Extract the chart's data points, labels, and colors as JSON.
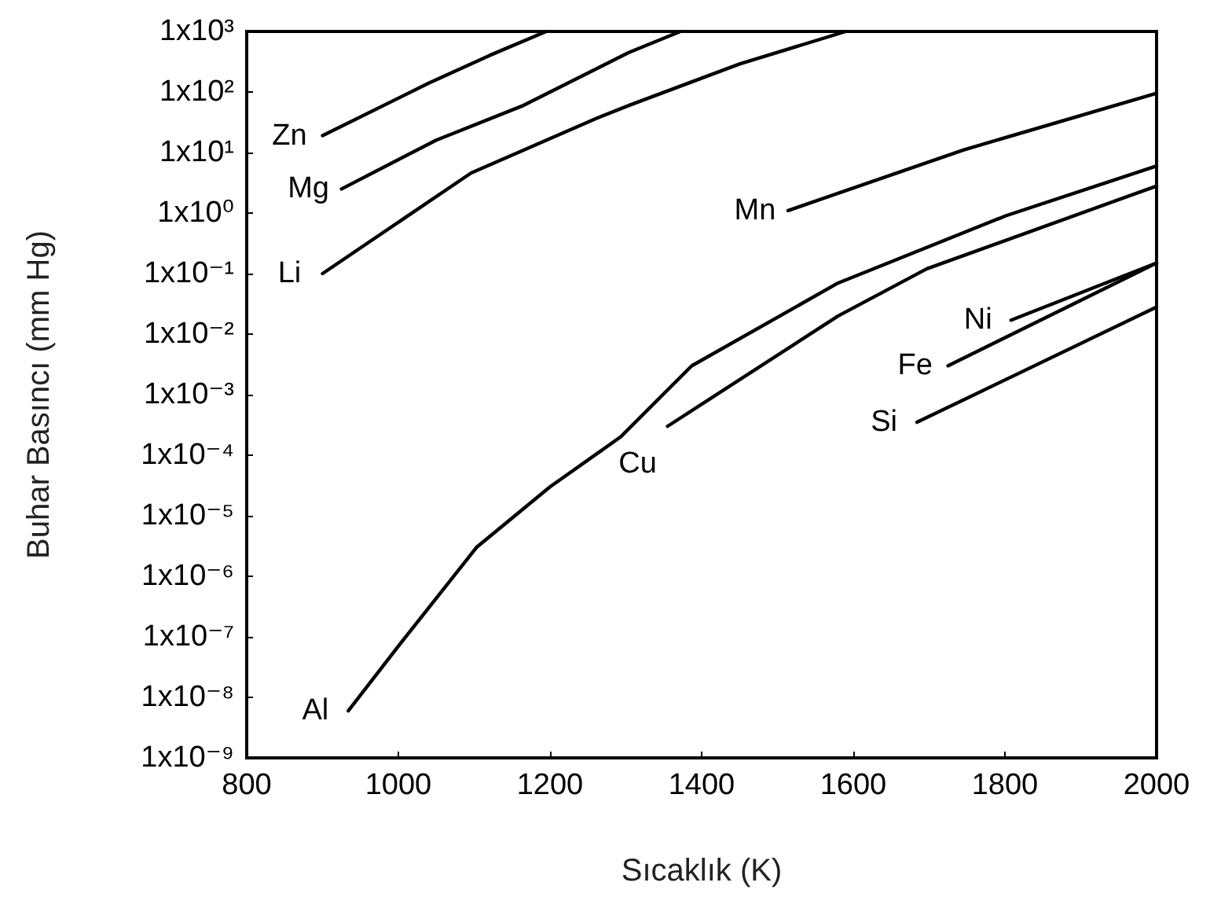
{
  "chart_data": {
    "type": "line",
    "xlabel": "Sıcaklık (K)",
    "ylabel": "Buhar Basıncı (mm Hg)",
    "xlim": [
      800,
      2000
    ],
    "xticks": [
      800,
      1000,
      1200,
      1400,
      1600,
      1800,
      2000
    ],
    "ylim": [
      1e-09,
      1000
    ],
    "log": "y",
    "yticks": [
      {
        "value": 1000,
        "label": "1x10³"
      },
      {
        "value": 100,
        "label": "1x10²"
      },
      {
        "value": 10,
        "label": "1x10¹"
      },
      {
        "value": 1,
        "label": "1x10⁰"
      },
      {
        "value": 0.1,
        "label": "1x10⁻¹"
      },
      {
        "value": 0.01,
        "label": "1x10⁻²"
      },
      {
        "value": 0.001,
        "label": "1x10⁻³"
      },
      {
        "value": 0.0001,
        "label": "1x10⁻⁴"
      },
      {
        "value": 1e-05,
        "label": "1x10⁻⁵"
      },
      {
        "value": 1e-06,
        "label": "1x10⁻⁶"
      },
      {
        "value": 1e-07,
        "label": "1x10⁻⁷"
      },
      {
        "value": 1e-08,
        "label": "1x10⁻⁸"
      },
      {
        "value": 1e-09,
        "label": "1x10⁻⁹"
      }
    ],
    "grid": false,
    "legend": false,
    "marker": "none",
    "line_style": "solid",
    "series": [
      {
        "name": "Zn",
        "color": "#000000",
        "x": [
          900,
          1040,
          1120,
          1195
        ],
        "values": [
          19,
          140,
          400,
          1000
        ]
      },
      {
        "name": "Mg",
        "color": "#000000",
        "x": [
          925,
          1050,
          1165,
          1304,
          1372
        ],
        "values": [
          2.5,
          16,
          60,
          450,
          1000
        ]
      },
      {
        "name": "Li",
        "color": "#000000",
        "x": [
          900,
          1096,
          1262,
          1304,
          1450,
          1590
        ],
        "values": [
          0.1,
          4.6,
          37,
          60,
          290,
          1000
        ]
      },
      {
        "name": "Mn",
        "color": "#000000",
        "x": [
          1514,
          1745,
          2000
        ],
        "values": [
          1.1,
          11,
          95
        ]
      },
      {
        "name": "Al",
        "color": "#000000",
        "x": [
          934,
          1000,
          1103,
          1200,
          1293,
          1387,
          1580,
          1801,
          2000
        ],
        "values": [
          6e-09,
          7e-08,
          3e-06,
          3e-05,
          0.0002,
          0.003,
          0.07,
          0.9,
          6
        ]
      },
      {
        "name": "Cu",
        "color": "#000000",
        "x": [
          1355,
          1580,
          1697,
          2000
        ],
        "values": [
          0.0003,
          0.02,
          0.12,
          2.8
        ]
      },
      {
        "name": "Ni",
        "color": "#000000",
        "x": [
          1808,
          2000
        ],
        "values": [
          0.017,
          0.15
        ]
      },
      {
        "name": "Fe",
        "color": "#000000",
        "x": [
          1725,
          2000
        ],
        "values": [
          0.003,
          0.15
        ]
      },
      {
        "name": "Si",
        "color": "#000000",
        "x": [
          1684,
          2000
        ],
        "values": [
          0.00035,
          0.028
        ]
      }
    ]
  }
}
